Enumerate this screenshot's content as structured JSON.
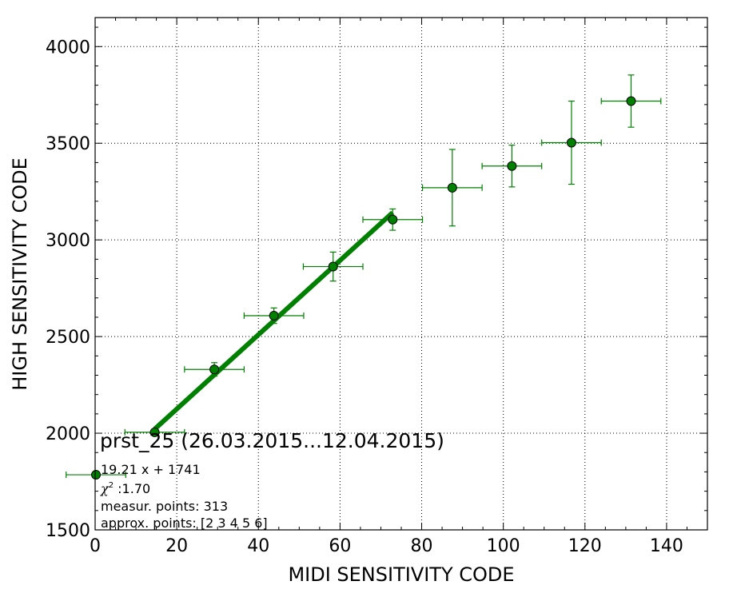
{
  "chart_data": {
    "type": "scatter",
    "xlabel": "MIDI SENSITIVITY CODE",
    "ylabel": "HIGH SENSITIVITY CODE",
    "xlim": [
      0,
      150
    ],
    "ylim": [
      1500,
      4150
    ],
    "x_ticks": [
      0,
      20,
      40,
      60,
      80,
      100,
      120,
      140
    ],
    "y_ticks": [
      1500,
      2000,
      2500,
      3000,
      3500,
      4000
    ],
    "x_tick_labels": [
      "0",
      "20",
      "40",
      "60",
      "80",
      "100",
      "120",
      "140"
    ],
    "y_tick_labels": [
      "1500",
      "2000",
      "2500",
      "3000",
      "3500",
      "4000"
    ],
    "grid": true,
    "marker_color": "#008000",
    "points": [
      {
        "x": 0.2,
        "y": 1785,
        "xerr": 7.3,
        "yerr": 0
      },
      {
        "x": 14.6,
        "y": 2005,
        "xerr": 7.3,
        "yerr": 0
      },
      {
        "x": 29.2,
        "y": 2330,
        "xerr": 7.3,
        "yerr": 35
      },
      {
        "x": 43.8,
        "y": 2608,
        "xerr": 7.3,
        "yerr": 40
      },
      {
        "x": 58.3,
        "y": 2862,
        "xerr": 7.3,
        "yerr": 75
      },
      {
        "x": 72.9,
        "y": 3105,
        "xerr": 7.3,
        "yerr": 55
      },
      {
        "x": 87.5,
        "y": 3270,
        "xerr": 7.3,
        "yerr": 198
      },
      {
        "x": 102.1,
        "y": 3382,
        "xerr": 7.3,
        "yerr": 108
      },
      {
        "x": 116.7,
        "y": 3503,
        "xerr": 7.3,
        "yerr": 215
      },
      {
        "x": 131.3,
        "y": 3718,
        "xerr": 7.3,
        "yerr": 135
      }
    ],
    "fit": {
      "slope": 19.21,
      "intercept": 1741,
      "x_range": [
        14.6,
        72.9
      ]
    },
    "annotation": {
      "title": "prst_25 (26.03.2015...12.04.2015)",
      "equation": "19.21 x + 1741",
      "chi_symbol": "χ",
      "chi_sup": "2",
      "chi_value": " :1.70",
      "measur_points": "measur. points: 313",
      "approx_points": "approx. points: [2 3 4 5 6]"
    }
  }
}
